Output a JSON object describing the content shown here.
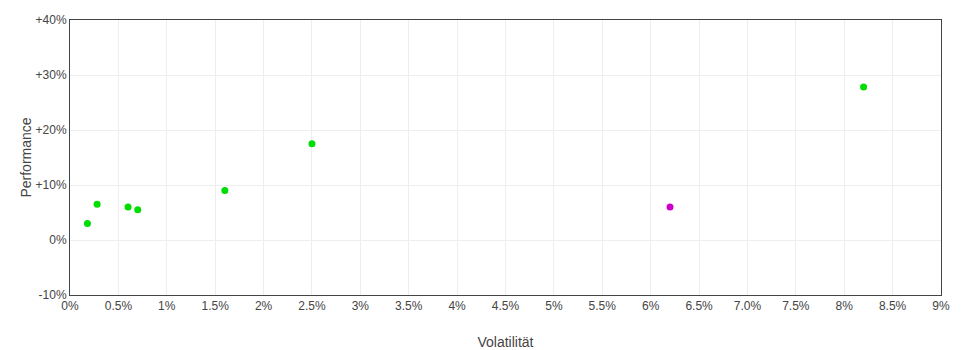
{
  "chart_data": {
    "type": "scatter",
    "xlabel": "Volatilität",
    "ylabel": "Performance",
    "series": [
      {
        "color": "#00dd00",
        "x": [
          0.0018,
          0.0028,
          0.006,
          0.007,
          0.016,
          0.025,
          0.082
        ],
        "values": [
          0.03,
          0.065,
          0.06,
          0.055,
          0.09,
          0.175,
          0.278
        ]
      },
      {
        "color": "#cc00cc",
        "x": [
          0.062
        ],
        "values": [
          0.06
        ]
      }
    ],
    "xlim": [
      0,
      0.09
    ],
    "ylim": [
      -0.1,
      0.4
    ],
    "xticks": [
      {
        "value": 0,
        "label": "0%"
      },
      {
        "value": 0.005,
        "label": "0.5%"
      },
      {
        "value": 0.01,
        "label": "1%"
      },
      {
        "value": 0.015,
        "label": "1.5%"
      },
      {
        "value": 0.02,
        "label": "2%"
      },
      {
        "value": 0.025,
        "label": "2.5%"
      },
      {
        "value": 0.03,
        "label": "3%"
      },
      {
        "value": 0.035,
        "label": "3.5%"
      },
      {
        "value": 0.04,
        "label": "4%"
      },
      {
        "value": 0.045,
        "label": "4.5%"
      },
      {
        "value": 0.05,
        "label": "5%"
      },
      {
        "value": 0.055,
        "label": "5.5%"
      },
      {
        "value": 0.06,
        "label": "6%"
      },
      {
        "value": 0.065,
        "label": "6.5%"
      },
      {
        "value": 0.07,
        "label": "7.0%"
      },
      {
        "value": 0.075,
        "label": "7.5%"
      },
      {
        "value": 0.08,
        "label": "8%"
      },
      {
        "value": 0.085,
        "label": "8.5%"
      },
      {
        "value": 0.09,
        "label": "9%"
      }
    ],
    "yticks": [
      {
        "value": -0.1,
        "label": "-10%"
      },
      {
        "value": 0.0,
        "label": "0%"
      },
      {
        "value": 0.1,
        "label": "+10%"
      },
      {
        "value": 0.2,
        "label": "+20%"
      },
      {
        "value": 0.3,
        "label": "+30%"
      },
      {
        "value": 0.4,
        "label": "+40%"
      }
    ],
    "grid": true
  }
}
